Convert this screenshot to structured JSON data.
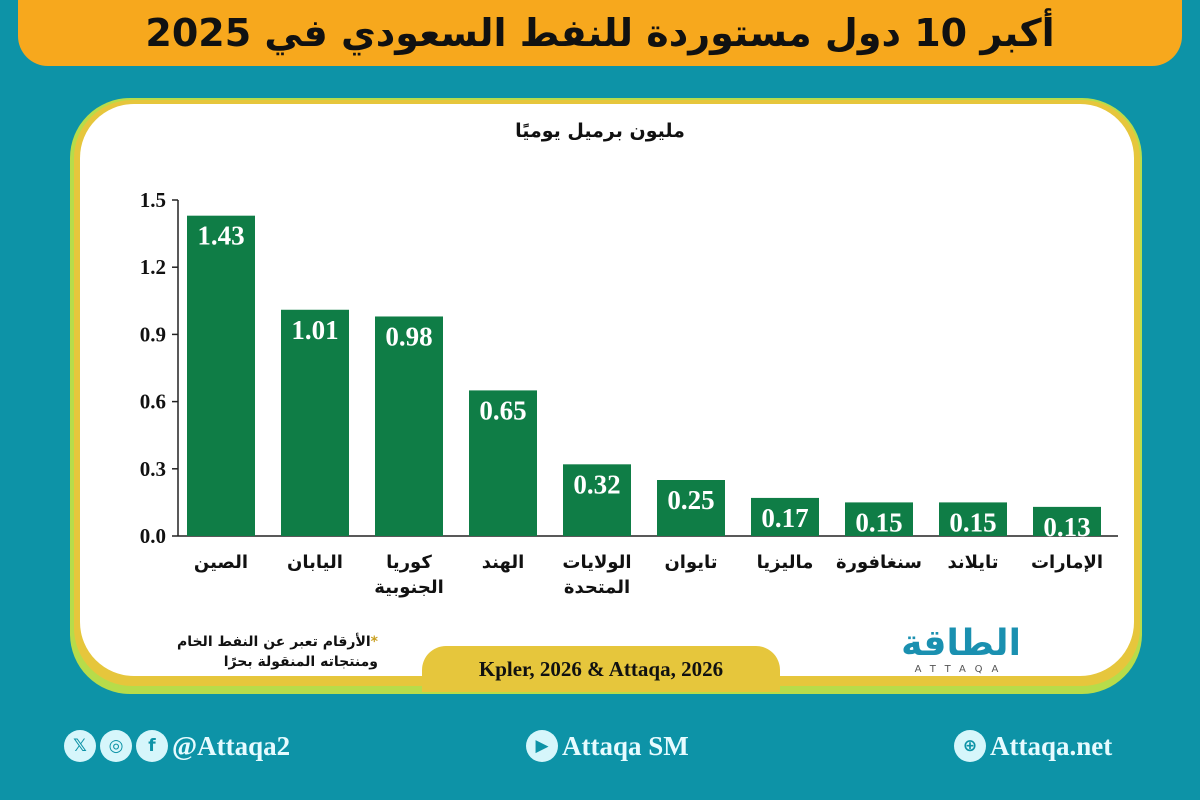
{
  "title": "أكبر 10 دول مستوردة للنفط السعودي في 2025",
  "chart_data": {
    "type": "bar",
    "title": "أكبر 10 دول مستوردة للنفط السعودي في 2025",
    "ylabel": "مليون برميل يوميًا",
    "categories": [
      "الصين",
      "اليابان",
      "كوريا الجنوبية",
      "الهند",
      "الولايات المتحدة",
      "تايوان",
      "ماليزيا",
      "سنغافورة",
      "تايلاند",
      "الإمارات"
    ],
    "category_lines": [
      [
        "الصين"
      ],
      [
        "اليابان"
      ],
      [
        "كوريا",
        "الجنوبية"
      ],
      [
        "الهند"
      ],
      [
        "الولايات",
        "المتحدة"
      ],
      [
        "تايوان"
      ],
      [
        "ماليزيا"
      ],
      [
        "سنغافورة"
      ],
      [
        "تايلاند"
      ],
      [
        "الإمارات"
      ]
    ],
    "values": [
      1.43,
      1.01,
      0.98,
      0.65,
      0.32,
      0.25,
      0.17,
      0.15,
      0.15,
      0.13
    ],
    "data_labels": [
      "1.43",
      "1.01",
      "0.98",
      "0.65",
      "0.32",
      "0.25",
      "0.17",
      "0.15",
      "0.15",
      "0.13"
    ],
    "yticks": [
      "0.0",
      "0.3",
      "0.6",
      "0.9",
      "1.2",
      "1.5"
    ],
    "ylim": [
      0,
      1.5
    ],
    "grid": false,
    "bar_color": "#0f7d46"
  },
  "note": {
    "star": "*",
    "line1": "الأرقام تعبر عن النفط الخام",
    "line2": "ومنتجاته المنقولة بحرًا"
  },
  "source": "Kpler, 2026 & Attaqa, 2026",
  "logo": {
    "arabic": "الطاقة",
    "latin": "ATTAQA"
  },
  "footer": {
    "handle": "@Attaqa2",
    "youtube": "Attaqa SM",
    "website": "Attaqa.net"
  },
  "colors": {
    "background": "#0d93a7",
    "title_bar": "#f7a81d",
    "border": "#e6c63c"
  }
}
